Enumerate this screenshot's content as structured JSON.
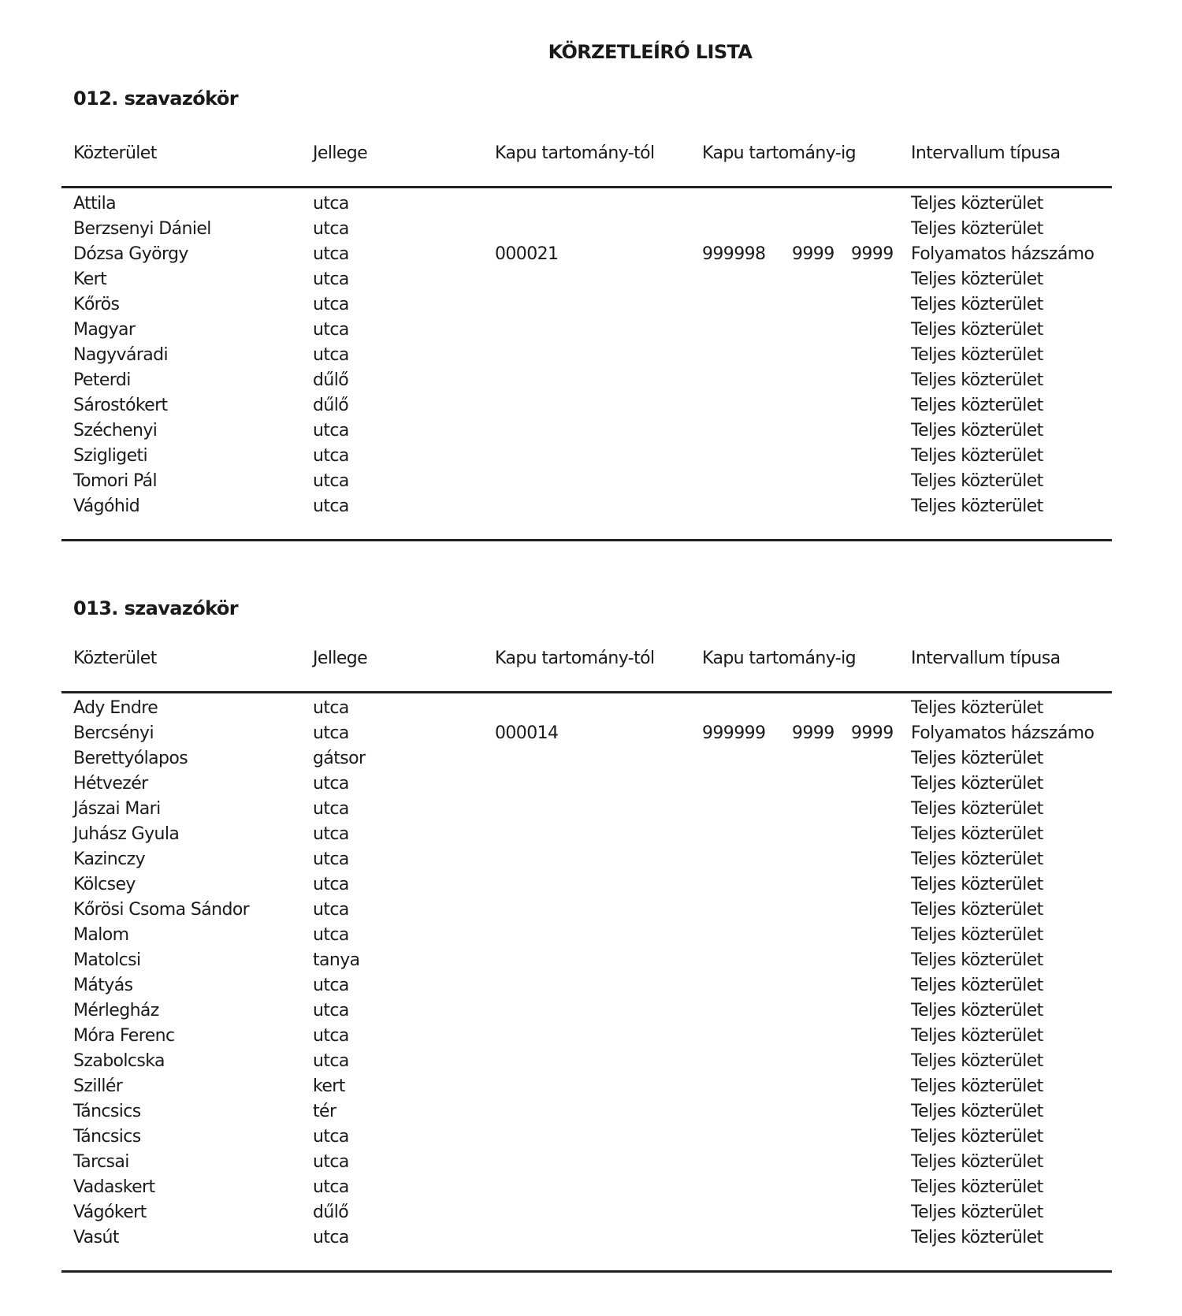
{
  "title": "KÖRZETLEÍRÓ LISTA",
  "columns": [
    "Közterület",
    "Jellege",
    "Kapu tartomány-tól",
    "Kapu tartomány-ig",
    "Intervallum típusa"
  ],
  "sections": [
    {
      "title": "012. szavazókör",
      "rows": [
        [
          "Attila",
          "utca",
          "",
          "",
          "",
          "",
          "Teljes közterület"
        ],
        [
          "Berzsenyi Dániel",
          "utca",
          "",
          "",
          "",
          "",
          "Teljes közterület"
        ],
        [
          "Dózsa György",
          "utca",
          "000021",
          "999998",
          "9999",
          "9999",
          "Folyamatos házszámo"
        ],
        [
          "Kert",
          "utca",
          "",
          "",
          "",
          "",
          "Teljes közterület"
        ],
        [
          "Kőrös",
          "utca",
          "",
          "",
          "",
          "",
          "Teljes közterület"
        ],
        [
          "Magyar",
          "utca",
          "",
          "",
          "",
          "",
          "Teljes közterület"
        ],
        [
          "Nagyváradi",
          "utca",
          "",
          "",
          "",
          "",
          "Teljes közterület"
        ],
        [
          "Peterdi",
          "dűlő",
          "",
          "",
          "",
          "",
          "Teljes közterület"
        ],
        [
          "Sárostókert",
          "dűlő",
          "",
          "",
          "",
          "",
          "Teljes közterület"
        ],
        [
          "Széchenyi",
          "utca",
          "",
          "",
          "",
          "",
          "Teljes közterület"
        ],
        [
          "Szigligeti",
          "utca",
          "",
          "",
          "",
          "",
          "Teljes közterület"
        ],
        [
          "Tomori Pál",
          "utca",
          "",
          "",
          "",
          "",
          "Teljes közterület"
        ],
        [
          "Vágóhid",
          "utca",
          "",
          "",
          "",
          "",
          "Teljes közterület"
        ]
      ]
    },
    {
      "title": "013. szavazókör",
      "rows": [
        [
          "Ady Endre",
          "utca",
          "",
          "",
          "",
          "",
          "Teljes közterület"
        ],
        [
          "Bercsényi",
          "utca",
          "000014",
          "999999",
          "9999",
          "9999",
          "Folyamatos házszámo"
        ],
        [
          "Berettyólapos",
          "gátsor",
          "",
          "",
          "",
          "",
          "Teljes közterület"
        ],
        [
          "Hétvezér",
          "utca",
          "",
          "",
          "",
          "",
          "Teljes közterület"
        ],
        [
          "Jászai Mari",
          "utca",
          "",
          "",
          "",
          "",
          "Teljes közterület"
        ],
        [
          "Juhász Gyula",
          "utca",
          "",
          "",
          "",
          "",
          "Teljes közterület"
        ],
        [
          "Kazinczy",
          "utca",
          "",
          "",
          "",
          "",
          "Teljes közterület"
        ],
        [
          "Kölcsey",
          "utca",
          "",
          "",
          "",
          "",
          "Teljes közterület"
        ],
        [
          "Kőrösi Csoma Sándor",
          "utca",
          "",
          "",
          "",
          "",
          "Teljes közterület"
        ],
        [
          "Malom",
          "utca",
          "",
          "",
          "",
          "",
          "Teljes közterület"
        ],
        [
          "Matolcsi",
          "tanya",
          "",
          "",
          "",
          "",
          "Teljes közterület"
        ],
        [
          "Mátyás",
          "utca",
          "",
          "",
          "",
          "",
          "Teljes közterület"
        ],
        [
          "Mérlegház",
          "utca",
          "",
          "",
          "",
          "",
          "Teljes közterület"
        ],
        [
          "Móra Ferenc",
          "utca",
          "",
          "",
          "",
          "",
          "Teljes közterület"
        ],
        [
          "Szabolcska",
          "utca",
          "",
          "",
          "",
          "",
          "Teljes közterület"
        ],
        [
          "Szillér",
          "kert",
          "",
          "",
          "",
          "",
          "Teljes közterület"
        ],
        [
          "Táncsics",
          "tér",
          "",
          "",
          "",
          "",
          "Teljes közterület"
        ],
        [
          "Táncsics",
          "utca",
          "",
          "",
          "",
          "",
          "Teljes közterület"
        ],
        [
          "Tarcsai",
          "utca",
          "",
          "",
          "",
          "",
          "Teljes közterület"
        ],
        [
          "Vadaskert",
          "utca",
          "",
          "",
          "",
          "",
          "Teljes közterület"
        ],
        [
          "Vágókert",
          "dűlő",
          "",
          "",
          "",
          "",
          "Teljes közterület"
        ],
        [
          "Vasút",
          "utca",
          "",
          "",
          "",
          "",
          "Teljes közterület"
        ]
      ]
    }
  ]
}
